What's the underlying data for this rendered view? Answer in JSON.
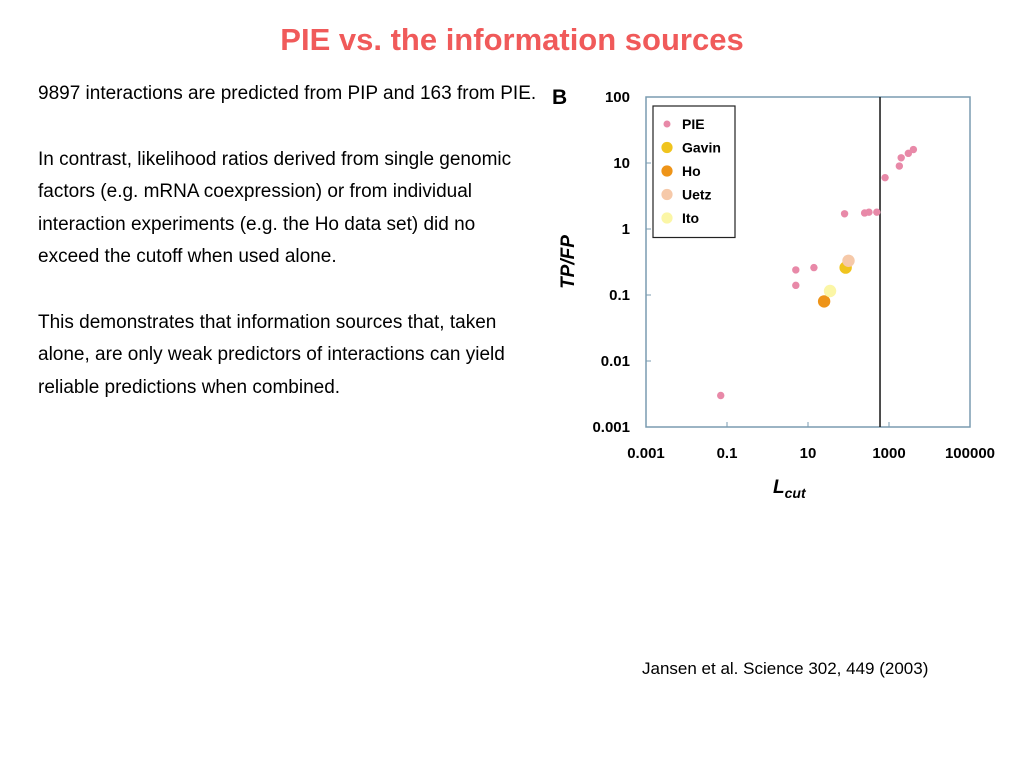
{
  "slide": {
    "title": "PIE vs. the information sources",
    "paragraphs": [
      "9897 interactions are predicted from PIP and 163 from PIE.",
      "In contrast, likelihood ratios derived from single genomic factors (e.g. mRNA coexpression) or from individual interaction experiments (e.g. the Ho data set) did no exceed the cutoff when used alone.",
      "This demonstrates that information sources that, taken alone, are only weak predictors of interactions can yield reliable predictions when combined."
    ],
    "citation": "Jansen et al. Science 302, 449 (2003)"
  },
  "colors": {
    "title": "#f05a5a",
    "frame": "#7a9bb0",
    "cutoff_line": "#222222"
  },
  "chart_data": {
    "type": "scatter",
    "panel_label": "B",
    "xlabel": "L",
    "xlabel_sub": "cut",
    "ylabel": "TP/FP",
    "x_scale": "log",
    "y_scale": "log",
    "xlim": [
      0.001,
      100000
    ],
    "ylim": [
      0.001,
      100
    ],
    "x_ticks": [
      {
        "value": 0.001,
        "label": "0.001"
      },
      {
        "value": 0.1,
        "label": "0.1"
      },
      {
        "value": 10,
        "label": "10"
      },
      {
        "value": 1000,
        "label": "1000"
      },
      {
        "value": 100000,
        "label": "100000"
      }
    ],
    "y_ticks": [
      {
        "value": 0.001,
        "label": "0.001"
      },
      {
        "value": 0.01,
        "label": "0.01"
      },
      {
        "value": 0.1,
        "label": "0.1"
      },
      {
        "value": 1,
        "label": "1"
      },
      {
        "value": 10,
        "label": "10"
      },
      {
        "value": 100,
        "label": "100"
      }
    ],
    "grid": false,
    "legend_position": "top-left",
    "cutoff_x": 600,
    "series": [
      {
        "name": "PIE",
        "color": "#e889a8",
        "size": "small",
        "points": [
          {
            "x": 0.07,
            "y": 0.003
          },
          {
            "x": 5,
            "y": 0.14
          },
          {
            "x": 5,
            "y": 0.24
          },
          {
            "x": 14,
            "y": 0.26
          },
          {
            "x": 80,
            "y": 1.7
          },
          {
            "x": 250,
            "y": 1.75
          },
          {
            "x": 320,
            "y": 1.8
          },
          {
            "x": 500,
            "y": 1.8
          },
          {
            "x": 800,
            "y": 6
          },
          {
            "x": 1800,
            "y": 9
          },
          {
            "x": 2000,
            "y": 12
          },
          {
            "x": 3000,
            "y": 14
          },
          {
            "x": 4000,
            "y": 16
          }
        ]
      },
      {
        "name": "Gavin",
        "color": "#f0c41e",
        "size": "large",
        "points": [
          {
            "x": 85,
            "y": 0.26
          }
        ]
      },
      {
        "name": "Ho",
        "color": "#ee9418",
        "size": "large",
        "points": [
          {
            "x": 25,
            "y": 0.08
          }
        ]
      },
      {
        "name": "Uetz",
        "color": "#f6c9a9",
        "size": "large",
        "points": [
          {
            "x": 100,
            "y": 0.33
          }
        ]
      },
      {
        "name": "Ito",
        "color": "#fbf6a6",
        "size": "large",
        "points": [
          {
            "x": 35,
            "y": 0.115
          }
        ]
      }
    ]
  }
}
